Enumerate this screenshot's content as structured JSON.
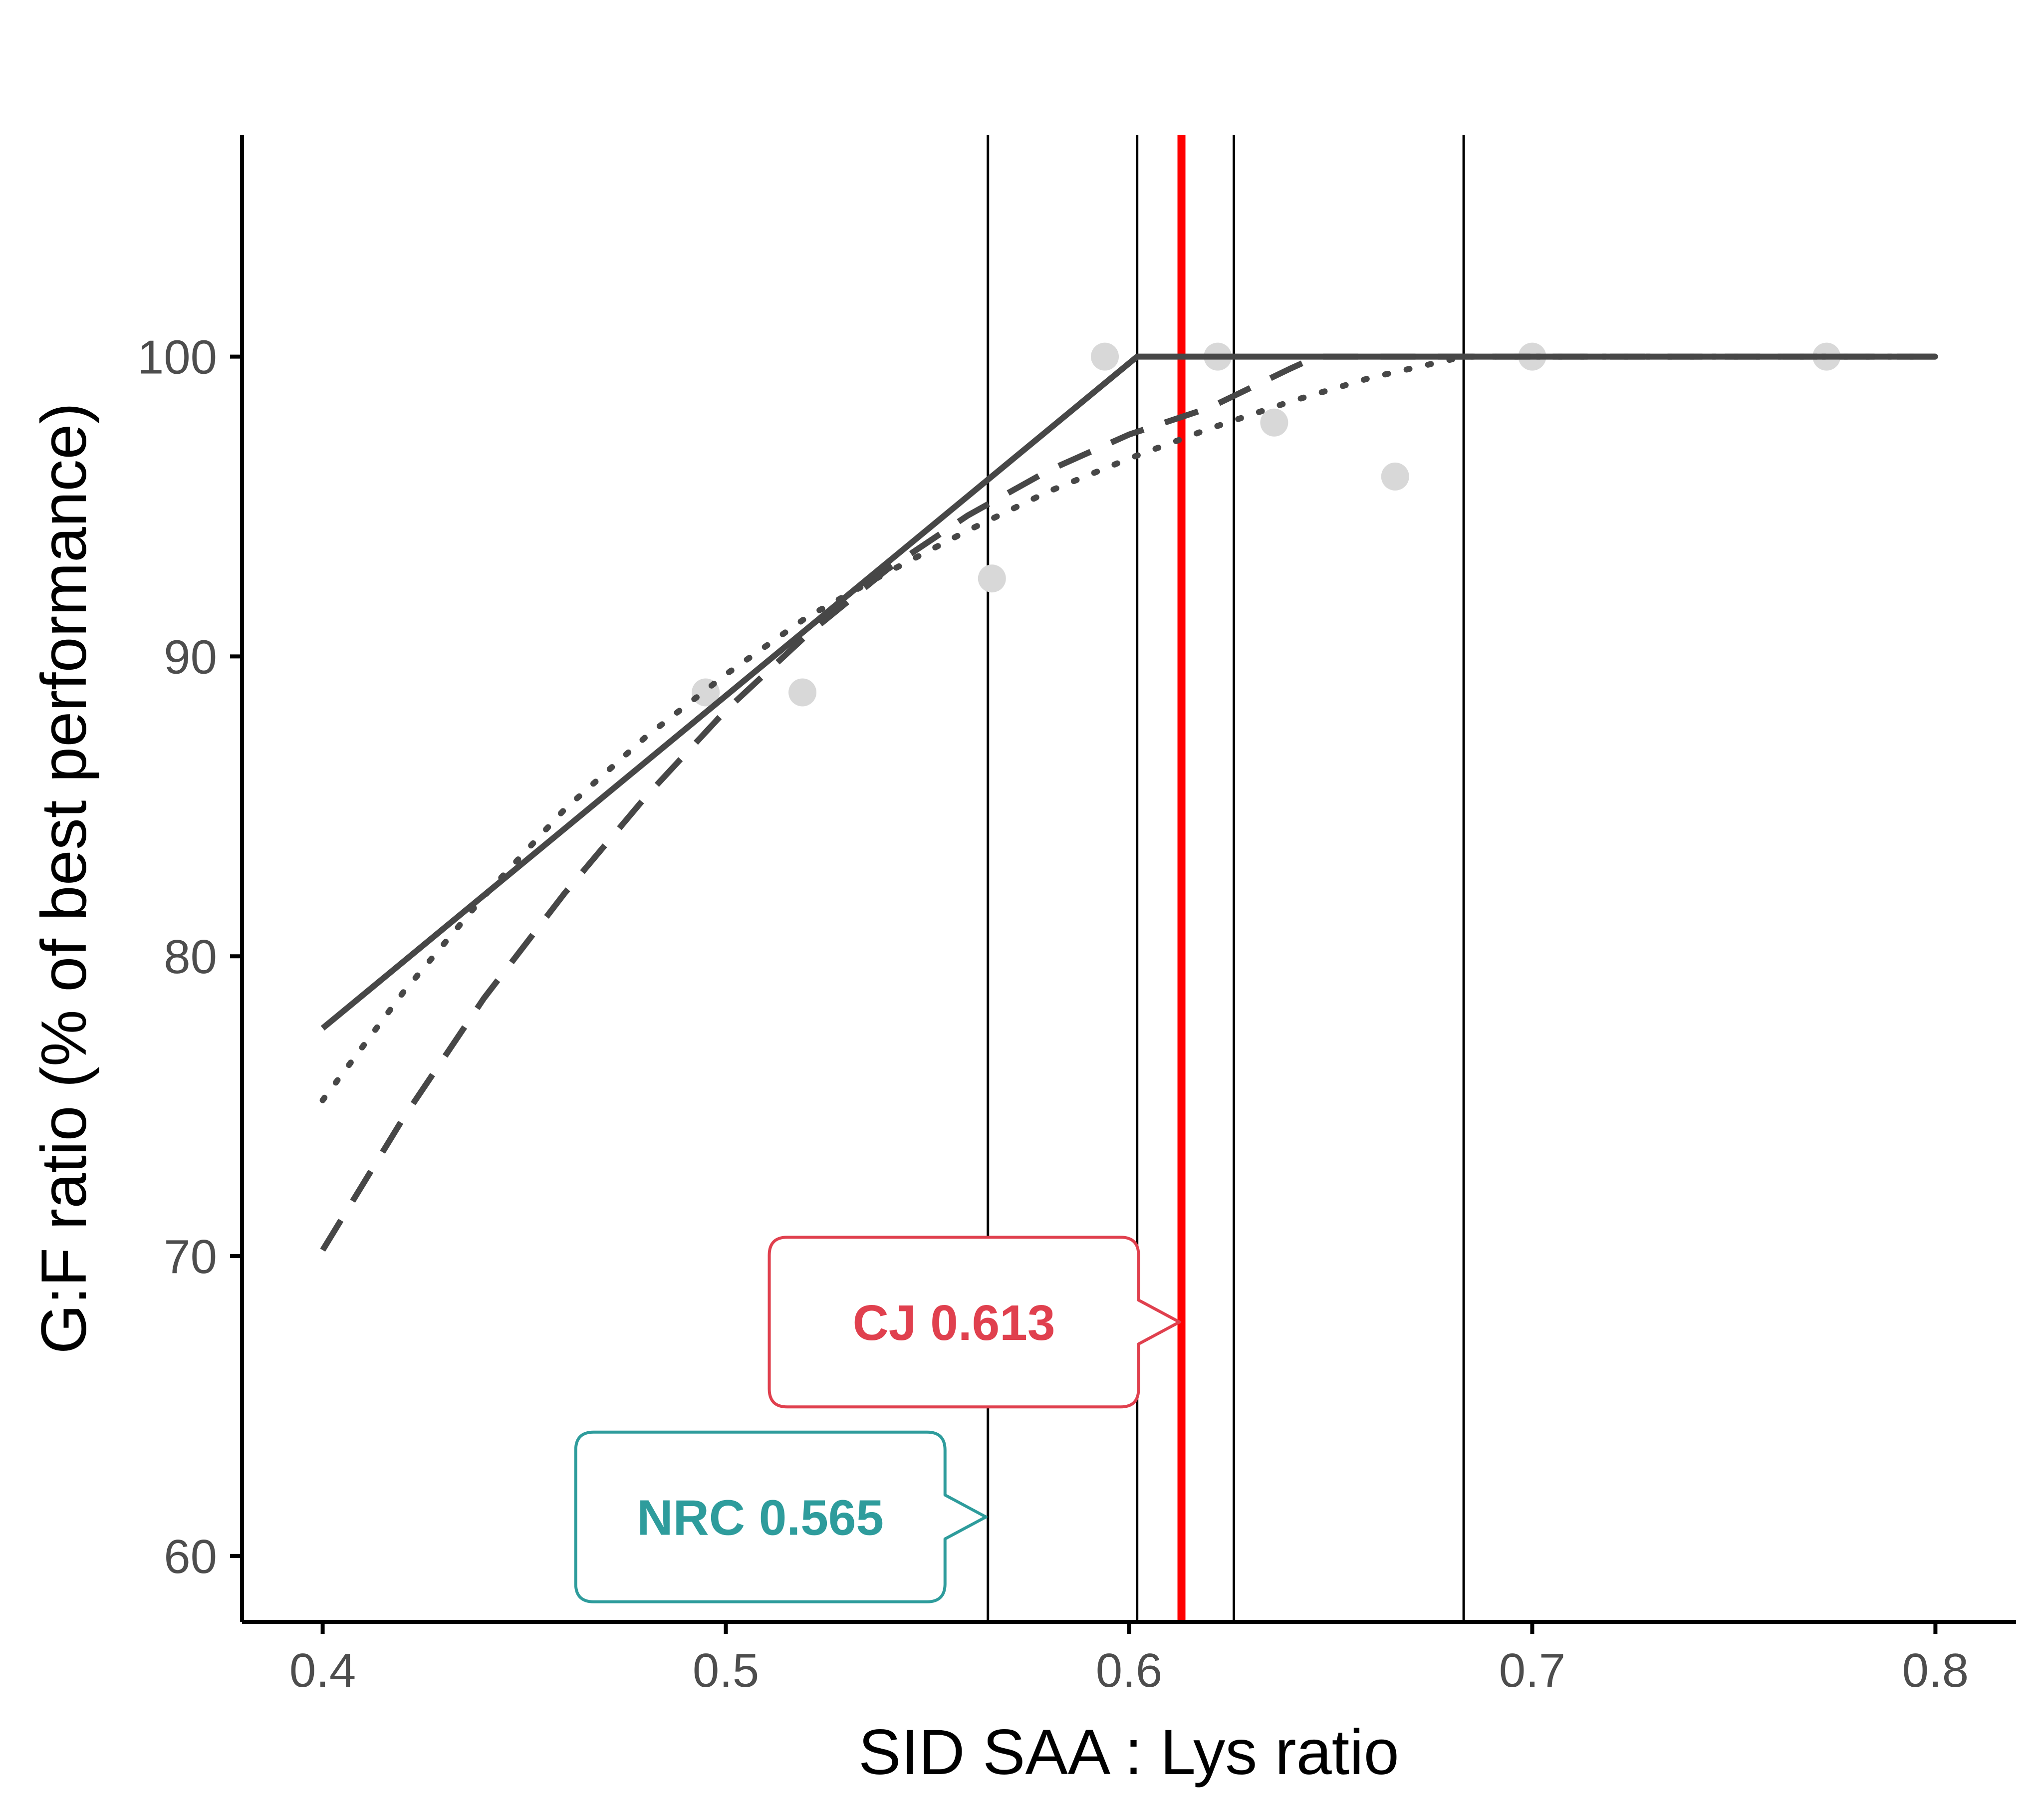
{
  "chart_data": {
    "type": "line",
    "xlabel": "SID SAA : Lys ratio",
    "ylabel": "G:F ratio (% of best performance)",
    "xlim": [
      0.38,
      0.82
    ],
    "ylim": [
      57.8,
      107.4
    ],
    "x_ticks": [
      0.4,
      0.5,
      0.6,
      0.7,
      0.8
    ],
    "y_ticks": [
      60,
      70,
      80,
      90,
      100
    ],
    "x_tick_labels": [
      "0.4",
      "0.5",
      "0.6",
      "0.7",
      "0.8"
    ],
    "y_tick_labels": [
      "60",
      "70",
      "80",
      "90",
      "100"
    ],
    "grid": false,
    "legend": "none",
    "points": [
      {
        "x": 0.495,
        "y": 88.8
      },
      {
        "x": 0.519,
        "y": 88.8
      },
      {
        "x": 0.566,
        "y": 92.6
      },
      {
        "x": 0.594,
        "y": 100.0
      },
      {
        "x": 0.622,
        "y": 100.0
      },
      {
        "x": 0.636,
        "y": 97.8
      },
      {
        "x": 0.666,
        "y": 96.0
      },
      {
        "x": 0.7,
        "y": 100.0
      },
      {
        "x": 0.773,
        "y": 100.0
      }
    ],
    "series": [
      {
        "style": "solid",
        "x": [
          0.4,
          0.602,
          0.8
        ],
        "y": [
          77.6,
          100.0,
          100.0
        ]
      },
      {
        "style": "dashed",
        "x": [
          0.4,
          0.42,
          0.44,
          0.46,
          0.48,
          0.5,
          0.52,
          0.54,
          0.56,
          0.58,
          0.6,
          0.62,
          0.64,
          0.6466,
          0.7,
          0.8
        ],
        "y": [
          70.2,
          74.6,
          78.6,
          82.1,
          85.3,
          88.2,
          90.7,
          92.9,
          94.7,
          96.2,
          97.4,
          98.3,
          99.6,
          100.0,
          100.0,
          100.0
        ]
      },
      {
        "style": "dotted",
        "x": [
          0.4,
          0.42,
          0.44,
          0.46,
          0.48,
          0.5,
          0.52,
          0.54,
          0.56,
          0.58,
          0.6,
          0.62,
          0.64,
          0.66,
          0.683,
          0.7,
          0.8
        ],
        "y": [
          75.2,
          78.8,
          82.0,
          84.9,
          87.3,
          89.4,
          91.3,
          92.8,
          94.2,
          95.5,
          96.6,
          97.6,
          98.5,
          99.3,
          100.0,
          100.0,
          100.0
        ]
      }
    ],
    "vlines": [
      {
        "x": 0.565,
        "color": "#000000"
      },
      {
        "x": 0.602,
        "color": "#000000"
      },
      {
        "x": 0.613,
        "color": "#ff0000"
      },
      {
        "x": 0.626,
        "color": "#000000"
      },
      {
        "x": 0.683,
        "color": "#000000"
      }
    ],
    "annotations": [
      {
        "text": "CJ 0.613",
        "x": 0.613,
        "y": 67.8,
        "color": "#e0404e"
      },
      {
        "text": "NRC 0.565",
        "x": 0.565,
        "y": 61.3,
        "color": "#2e9c9c"
      }
    ],
    "colors": {
      "line": "#474747",
      "point": "#d8d8d8",
      "axis": "#000000",
      "highlight": "#ff0000"
    }
  }
}
